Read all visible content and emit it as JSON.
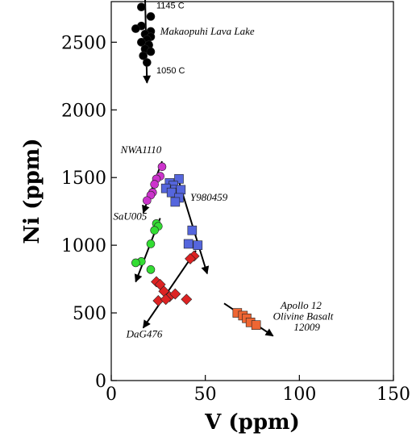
{
  "chart_data": {
    "type": "scatter",
    "xlabel": "V (ppm)",
    "ylabel": "Ni (ppm)",
    "xlim": [
      0,
      150
    ],
    "ylim": [
      0,
      2800
    ],
    "xticks": [
      0,
      50,
      100,
      150
    ],
    "yticks": [
      0,
      500,
      1000,
      1500,
      2000,
      2500
    ],
    "grid": false,
    "series": [
      {
        "label": "Makaopuhi Lava Lake",
        "marker": "circle",
        "color": "#000000",
        "points": [
          [
            16,
            2760
          ],
          [
            21,
            2690
          ],
          [
            16,
            2620
          ],
          [
            13,
            2600
          ],
          [
            21,
            2580
          ],
          [
            18,
            2560
          ],
          [
            21,
            2540
          ],
          [
            19,
            2520
          ],
          [
            16,
            2500
          ],
          [
            20,
            2480
          ],
          [
            18,
            2450
          ],
          [
            21,
            2430
          ],
          [
            17,
            2400
          ],
          [
            19,
            2350
          ]
        ],
        "trend": [
          [
            18,
            2820
          ],
          [
            19,
            2200
          ]
        ]
      },
      {
        "label": "NWA1110",
        "marker": "circle",
        "color": "#cc33cc",
        "points": [
          [
            27,
            1580
          ],
          [
            26,
            1510
          ],
          [
            24,
            1490
          ],
          [
            23,
            1450
          ],
          [
            22,
            1390
          ],
          [
            21,
            1370
          ],
          [
            19,
            1330
          ]
        ],
        "trend": [
          [
            27,
            1620
          ],
          [
            17,
            1240
          ]
        ]
      },
      {
        "label": "SaU005",
        "marker": "circle",
        "color": "#33dd33",
        "points": [
          [
            24,
            1160
          ],
          [
            25,
            1140
          ],
          [
            23,
            1110
          ],
          [
            21,
            1010
          ],
          [
            16,
            880
          ],
          [
            13,
            870
          ],
          [
            21,
            820
          ]
        ],
        "trend": [
          [
            26,
            1200
          ],
          [
            13,
            730
          ]
        ]
      },
      {
        "label": "Y980459",
        "marker": "square",
        "color": "#5566dd",
        "points": [
          [
            36,
            1490
          ],
          [
            31,
            1460
          ],
          [
            33,
            1440
          ],
          [
            29,
            1420
          ],
          [
            34,
            1410
          ],
          [
            37,
            1410
          ],
          [
            32,
            1390
          ],
          [
            36,
            1350
          ],
          [
            34,
            1320
          ],
          [
            43,
            1110
          ],
          [
            41,
            1010
          ],
          [
            46,
            1000
          ]
        ],
        "trend": [
          [
            36,
            1470
          ],
          [
            51,
            790
          ]
        ]
      },
      {
        "label": "DaG476",
        "marker": "diamond",
        "color": "#dd2222",
        "points": [
          [
            44,
            920
          ],
          [
            42,
            900
          ],
          [
            24,
            730
          ],
          [
            26,
            710
          ],
          [
            28,
            660
          ],
          [
            31,
            620
          ],
          [
            34,
            640
          ],
          [
            25,
            590
          ],
          [
            29,
            600
          ],
          [
            40,
            600
          ]
        ],
        "trend": [
          [
            45,
            960
          ],
          [
            17,
            390
          ]
        ]
      },
      {
        "label": "Apollo 12 Olivine Basalt 12009",
        "marker": "square",
        "color": "#ee6633",
        "points": [
          [
            67,
            500
          ],
          [
            70,
            480
          ],
          [
            72,
            460
          ],
          [
            74,
            430
          ],
          [
            77,
            410
          ]
        ],
        "trend": [
          [
            60,
            570
          ],
          [
            86,
            330
          ]
        ]
      }
    ],
    "annotations": [
      {
        "text": "1145 C",
        "x": 24,
        "y": 2750,
        "kind": "temp"
      },
      {
        "text": "Makaopuhi Lava Lake",
        "x": 26,
        "y": 2555,
        "kind": "label"
      },
      {
        "text": "1050 C",
        "x": 24,
        "y": 2270,
        "kind": "temp"
      },
      {
        "text": "NWA1110",
        "x": 5,
        "y": 1680,
        "kind": "label"
      },
      {
        "text": "Y980459",
        "x": 42,
        "y": 1330,
        "kind": "label"
      },
      {
        "text": "SaU005",
        "x": 1,
        "y": 1190,
        "kind": "label"
      },
      {
        "text": "DaG476",
        "x": 8,
        "y": 320,
        "kind": "label"
      },
      {
        "text": "Apollo 12",
        "x": 90,
        "y": 530,
        "kind": "label"
      },
      {
        "text": "Olivine Basalt",
        "x": 86,
        "y": 450,
        "kind": "label"
      },
      {
        "text": "12009",
        "x": 97,
        "y": 370,
        "kind": "label"
      }
    ]
  }
}
